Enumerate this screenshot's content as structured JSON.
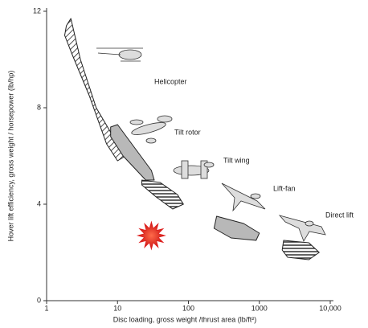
{
  "chart_data": {
    "type": "region",
    "x_label": "Disc loading, gross weight /thrust area (lb/ft²)",
    "y_label": "Hover lift efficiency, gross weight / horsepower (lb/hp)",
    "xscale": "log",
    "xlim": [
      1,
      10000
    ],
    "xticks": [
      1,
      10,
      100,
      1000,
      {
        "value": 10000,
        "label": "10,000"
      }
    ],
    "ylim": [
      0,
      12
    ],
    "yticks": [
      0,
      4,
      8,
      12
    ],
    "regions": [
      {
        "name": "Helicopter",
        "fill": "hatch-diagonal",
        "x": [
          1.9,
          2.2,
          3,
          5,
          10,
          13,
          10,
          7,
          4,
          2.3,
          1.8
        ],
        "y": [
          11.4,
          11.7,
          10,
          8,
          6.5,
          6,
          5.8,
          6.5,
          8.5,
          10.2,
          11
        ]
      },
      {
        "name": "Tilt rotor",
        "fill": "gray",
        "x": [
          8,
          10,
          15,
          30,
          33,
          25,
          12,
          8
        ],
        "y": [
          7.2,
          7.3,
          6.6,
          5.4,
          5.0,
          5.0,
          6,
          6.8
        ]
      },
      {
        "name": "Tilt wing",
        "fill": "hatch-horizontal",
        "x": [
          22,
          40,
          70,
          85,
          60,
          35,
          22
        ],
        "y": [
          5,
          4.9,
          4.4,
          4.0,
          3.8,
          4.3,
          4.8
        ]
      },
      {
        "name": "Lift-fan",
        "fill": "gray",
        "x": [
          250,
          600,
          1000,
          900,
          400,
          230
        ],
        "y": [
          3.5,
          3.2,
          2.8,
          2.5,
          2.6,
          3.0
        ]
      },
      {
        "name": "Direct lift",
        "fill": "hatch-horizontal",
        "x": [
          2200,
          5000,
          7000,
          5000,
          2500,
          2100
        ],
        "y": [
          2.5,
          2.4,
          2.0,
          1.7,
          1.8,
          2.1
        ]
      }
    ],
    "marker": {
      "x": 30,
      "y": 2.7,
      "color": "#e02020"
    }
  }
}
